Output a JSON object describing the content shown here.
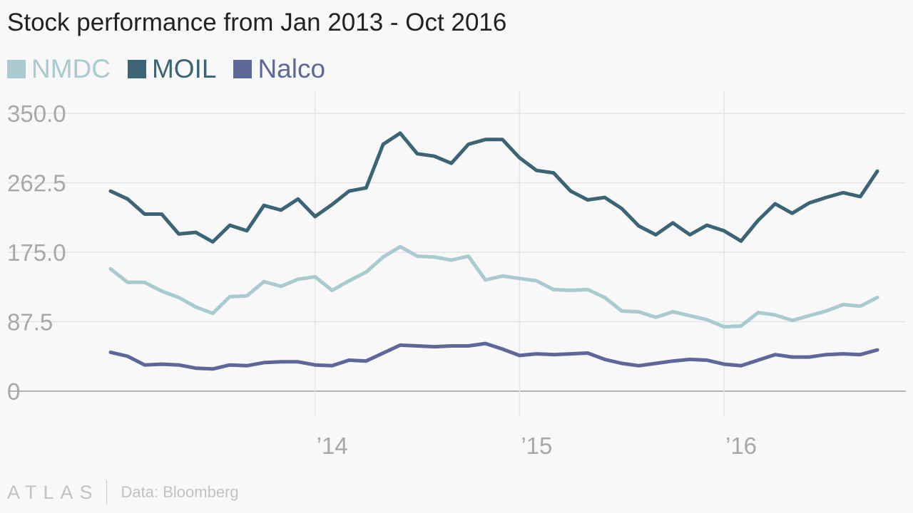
{
  "chart_data": {
    "type": "line",
    "title": "Stock performance from Jan 2013 - Oct 2016",
    "xlabel": "",
    "ylabel": "",
    "x": [
      "2013-01",
      "2013-02",
      "2013-03",
      "2013-04",
      "2013-05",
      "2013-06",
      "2013-07",
      "2013-08",
      "2013-09",
      "2013-10",
      "2013-11",
      "2013-12",
      "2014-01",
      "2014-02",
      "2014-03",
      "2014-04",
      "2014-05",
      "2014-06",
      "2014-07",
      "2014-08",
      "2014-09",
      "2014-10",
      "2014-11",
      "2014-12",
      "2015-01",
      "2015-02",
      "2015-03",
      "2015-04",
      "2015-05",
      "2015-06",
      "2015-07",
      "2015-08",
      "2015-09",
      "2015-10",
      "2015-11",
      "2015-12",
      "2016-01",
      "2016-02",
      "2016-03",
      "2016-04",
      "2016-05",
      "2016-06",
      "2016-07",
      "2016-08",
      "2016-09",
      "2016-10"
    ],
    "x_ticks": [
      "’14",
      "’15",
      "’16"
    ],
    "y_ticks": [
      "350.0",
      "262.5",
      "175.0",
      "87.5",
      "0"
    ],
    "ylim": [
      0,
      350
    ],
    "grid": true,
    "legend_position": "top-left",
    "series": [
      {
        "name": "NMDC",
        "color": "#a8cad0",
        "values": [
          154,
          137,
          137,
          126,
          118,
          106,
          98,
          119,
          120,
          138,
          132,
          141,
          144,
          127,
          139,
          150,
          169,
          182,
          170,
          169,
          165,
          170,
          140,
          145,
          142,
          139,
          128,
          127,
          128,
          118,
          101,
          100,
          93,
          100,
          95,
          90,
          81,
          82,
          99,
          96,
          89,
          95,
          101,
          109,
          107,
          118
        ]
      },
      {
        "name": "MOIL",
        "color": "#3b6474",
        "values": [
          252,
          242,
          223,
          223,
          198,
          200,
          188,
          209,
          202,
          234,
          228,
          242,
          220,
          235,
          252,
          256,
          311,
          325,
          299,
          296,
          287,
          311,
          317,
          317,
          294,
          278,
          275,
          252,
          241,
          244,
          230,
          208,
          197,
          212,
          197,
          209,
          202,
          189,
          215,
          236,
          224,
          237,
          244,
          250,
          245,
          277
        ]
      },
      {
        "name": "Nalco",
        "color": "#5e6799",
        "values": [
          49,
          44,
          33,
          34,
          33,
          29,
          28,
          33,
          32,
          36,
          37,
          37,
          33,
          32,
          39,
          38,
          48,
          58,
          57,
          56,
          57,
          57,
          60,
          53,
          45,
          47,
          46,
          47,
          48,
          40,
          35,
          32,
          35,
          38,
          40,
          39,
          34,
          32,
          39,
          46,
          43,
          43,
          46,
          47,
          46,
          52
        ]
      }
    ],
    "source": "Data: Bloomberg",
    "logo_text": "ATLAS"
  }
}
